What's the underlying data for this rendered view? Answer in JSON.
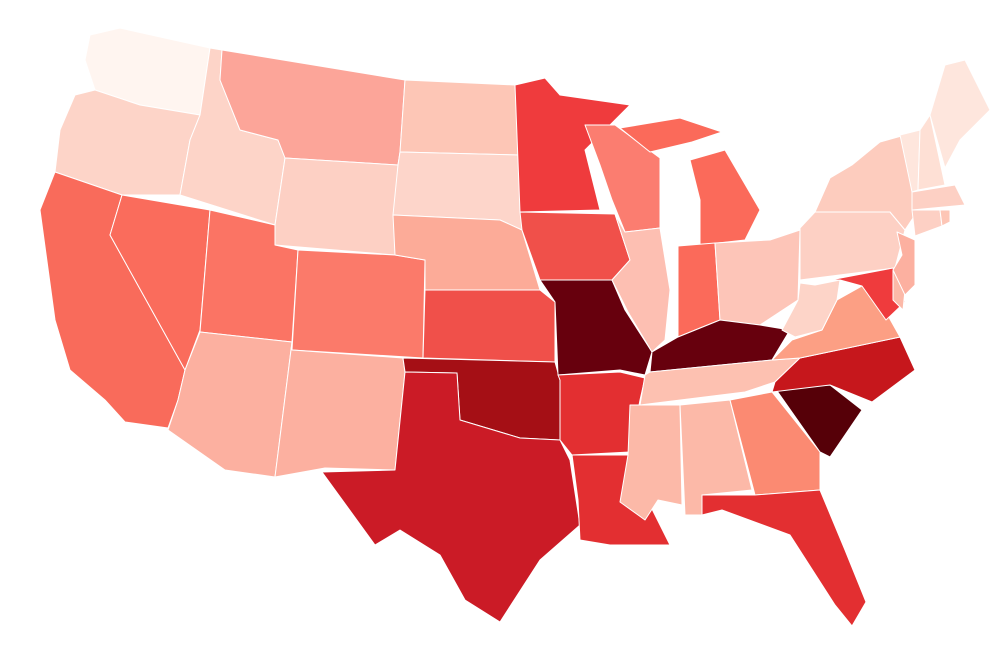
{
  "map": {
    "colors": [
      "#fff5f0",
      "#fdd4c8",
      "#f96b5b",
      "#fa6c5c",
      "#fdd4c8",
      "#fca599",
      "#fdd0c4",
      "#fb7464",
      "#fb7a6a",
      "#fcb0a0",
      "#fcb0a0",
      "#fdc6b6",
      "#fdd5ca",
      "#fcab98",
      "#f0504a",
      "#a50f15",
      "#cb1b26",
      "#ef3b3d",
      "#f0504a",
      "#67000d",
      "#e32f31",
      "#e32f31",
      "#fb7d70",
      "#fdbfb2",
      "#fb6a5a",
      "#fb6a5a",
      "#fb6a5a",
      "#fdc5b8",
      "#67000d",
      "#fdc1b1",
      "#fcb9a8",
      "#fcb9a8",
      "#fb8a72",
      "#e32f31",
      "#560008",
      "#c6171c",
      "#fc9f84",
      "#fdd4c8",
      "#fdd0c4",
      "#fdccbe",
      "#ef3b3d",
      "#fcb9a8",
      "#fcb0a0",
      "#fee6dd",
      "#fee0d5",
      "#fee6dd",
      "#fdd0c4",
      "#fdd0c4",
      "#fdc6b6"
    ]
  }
}
